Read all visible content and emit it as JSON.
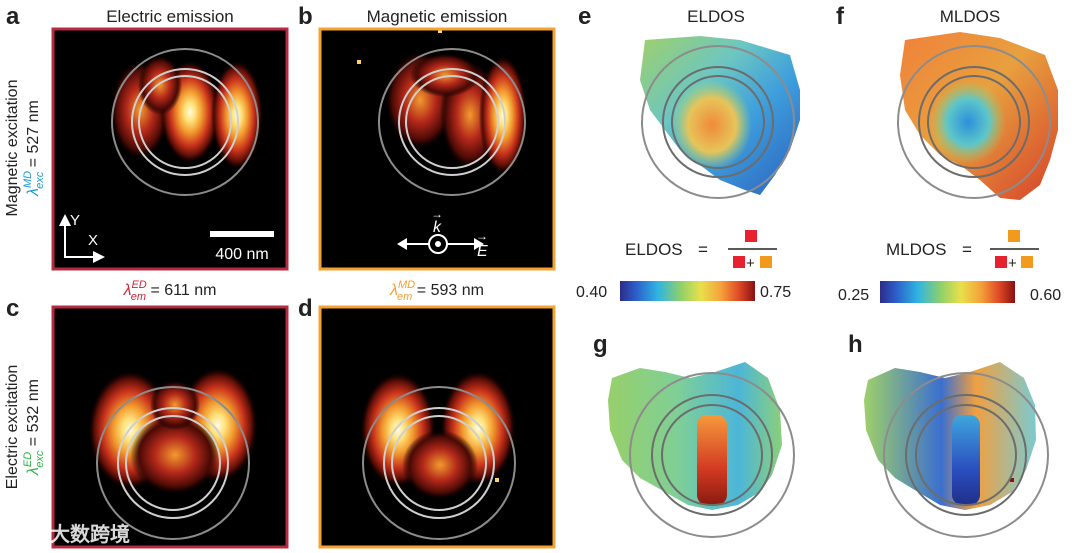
{
  "panels": {
    "a": "a",
    "b": "b",
    "c": "c",
    "d": "d",
    "e": "e",
    "f": "f",
    "g": "g",
    "h": "h"
  },
  "columns": {
    "electric": "Electric emission",
    "magnetic": "Magnetic emission",
    "eldos": "ELDOS",
    "mldos": "MLDOS"
  },
  "rows": {
    "magnetic_exc": {
      "title": "Magnetic excitation",
      "lambda": "λ",
      "sup": "MD",
      "sub": "exc",
      "value": " = 527 nm"
    },
    "electric_exc": {
      "title": "Electric excitation",
      "lambda": "λ",
      "sup": "ED",
      "sub": "exc",
      "value": " = 532 nm"
    }
  },
  "emission": {
    "ed": {
      "lambda": "λ",
      "sup": "ED",
      "sub": "em",
      "value": " = 611 nm"
    },
    "md": {
      "lambda": "λ",
      "sup": "MD",
      "sub": "em",
      "value": " = 593 nm"
    }
  },
  "axes": {
    "y": "Y",
    "x": "X"
  },
  "scalebar": "400 nm",
  "vectors": {
    "k": "k",
    "e": "E",
    "arrow": "→"
  },
  "formulas": {
    "eldos": {
      "name": "ELDOS",
      "eq": "=",
      "plus": "+"
    },
    "mldos": {
      "name": "MLDOS",
      "eq": "=",
      "plus": "+"
    }
  },
  "colorbars": {
    "eldos": {
      "min": "0.40",
      "max": "0.75"
    },
    "mldos": {
      "min": "0.25",
      "max": "0.60"
    }
  },
  "watermark": "大数跨境",
  "colors": {
    "ed_frame": "#b52b3f",
    "md_frame": "#f4a333",
    "ed_square": "#e8212f",
    "md_square": "#f29a1d",
    "ed_text": "#c8273c",
    "md_text": "#f4a333",
    "md_exc_text": "#1b9ad6",
    "ed_exc_text": "#2eb34a"
  }
}
